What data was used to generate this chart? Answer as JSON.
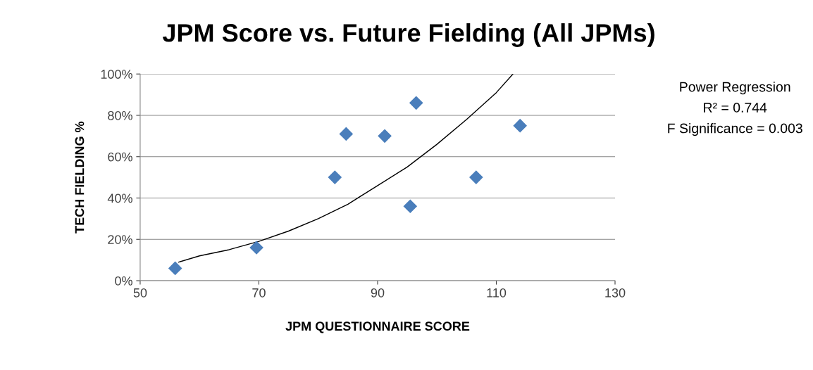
{
  "chart_data": {
    "type": "scatter",
    "title": "JPM Score vs. Future Fielding (All JPMs)",
    "xlabel": "JPM QUESTIONNAIRE SCORE",
    "ylabel": "TECH FIELDING %",
    "xlim": [
      50,
      130
    ],
    "xticks": [
      50,
      70,
      90,
      110,
      130
    ],
    "ylim": [
      0,
      100
    ],
    "yticks": [
      {
        "value": 0,
        "label": "0%"
      },
      {
        "value": 20,
        "label": "20%"
      },
      {
        "value": 40,
        "label": "40%"
      },
      {
        "value": 60,
        "label": "60%"
      },
      {
        "value": 80,
        "label": "80%"
      },
      {
        "value": 100,
        "label": "100%"
      }
    ],
    "grid": "y",
    "legend": false,
    "marker": "diamond",
    "series": [
      {
        "color": "#4a7ebb",
        "x": [
          55.9,
          69.6,
          82.8,
          84.7,
          91.2,
          95.5,
          96.5,
          106.6,
          114.0
        ],
        "values": [
          6,
          16,
          50,
          71,
          70,
          36,
          86,
          50,
          75
        ]
      },
      {
        "type": "line",
        "color": "#000000",
        "marker": "none",
        "x": [
          56.5,
          60,
          65,
          70,
          75,
          80,
          85,
          90,
          95,
          100,
          105,
          110,
          112.8
        ],
        "values": [
          9,
          12,
          15,
          19,
          24,
          30,
          37,
          46,
          55,
          66,
          78,
          91,
          100
        ]
      }
    ],
    "annotations": [
      "Power Regression",
      "R² = 0.744",
      "F Significance = 0.003"
    ]
  }
}
